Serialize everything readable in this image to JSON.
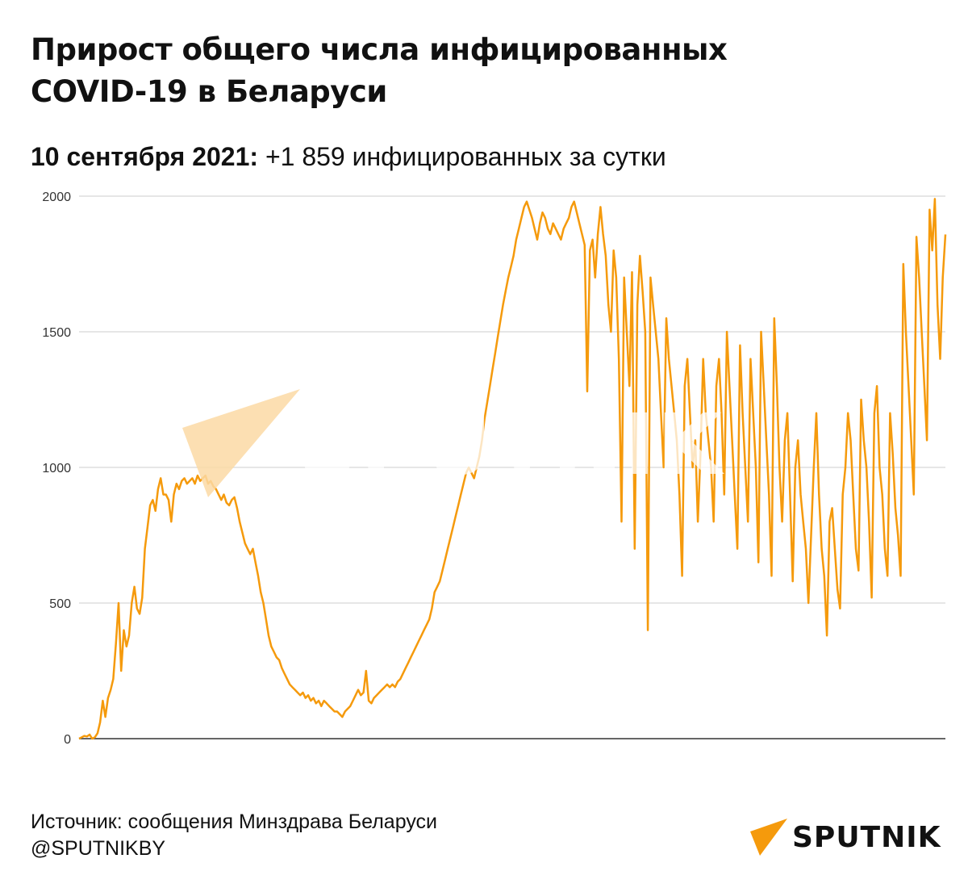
{
  "header": {
    "title_line1": "Прирост общего числа инфицированных",
    "title_line2": "COVID-19 в Беларуси",
    "date": "10 сентября 2021:",
    "stat": "+1 859 инфицированных за сутки"
  },
  "footer": {
    "source": "Источник: сообщения Минздрава Беларуси",
    "handle": "@SPUTNIKBY"
  },
  "brand": {
    "name": "SPUTNIK",
    "watermark": "SPUTNIK",
    "logo_icon": "sputnik-arrow-icon"
  },
  "colors": {
    "line": "#f59a0c",
    "grid": "#cccccc",
    "brand_accent": "#f59a0c"
  },
  "chart_data": {
    "type": "line",
    "title": "Прирост общего числа инфицированных COVID-19 в Беларуси",
    "xlabel": "",
    "ylabel": "",
    "ylim": [
      0,
      2000
    ],
    "yticks": [
      0,
      500,
      1000,
      1500,
      2000
    ],
    "grid": true,
    "series": [
      {
        "values": [
          0,
          5,
          10,
          8,
          15,
          0,
          5,
          20,
          60,
          140,
          80,
          150,
          180,
          220,
          350,
          500,
          250,
          400,
          340,
          380,
          500,
          560,
          480,
          460,
          520,
          700,
          780,
          860,
          880,
          840,
          920,
          960,
          900,
          900,
          880,
          800,
          900,
          940,
          920,
          950,
          960,
          940,
          950,
          960,
          940,
          970,
          950,
          960,
          970,
          940,
          950,
          930,
          920,
          900,
          880,
          900,
          870,
          860,
          880,
          890,
          850,
          800,
          760,
          720,
          700,
          680,
          700,
          650,
          600,
          540,
          500,
          440,
          380,
          340,
          320,
          300,
          290,
          260,
          240,
          220,
          200,
          190,
          180,
          170,
          160,
          170,
          150,
          160,
          140,
          150,
          130,
          140,
          120,
          140,
          130,
          120,
          110,
          100,
          100,
          90,
          80,
          100,
          110,
          120,
          140,
          160,
          180,
          160,
          170,
          250,
          140,
          130,
          150,
          160,
          170,
          180,
          190,
          200,
          190,
          200,
          190,
          210,
          220,
          240,
          260,
          280,
          300,
          320,
          340,
          360,
          380,
          400,
          420,
          440,
          480,
          540,
          560,
          580,
          620,
          660,
          700,
          740,
          780,
          820,
          860,
          900,
          940,
          980,
          1000,
          980,
          960,
          1000,
          1040,
          1100,
          1180,
          1240,
          1300,
          1360,
          1420,
          1480,
          1540,
          1600,
          1650,
          1700,
          1740,
          1780,
          1840,
          1880,
          1920,
          1960,
          1980,
          1950,
          1920,
          1880,
          1840,
          1900,
          1940,
          1920,
          1880,
          1860,
          1900,
          1880,
          1860,
          1840,
          1880,
          1900,
          1920,
          1960,
          1980,
          1940,
          1900,
          1860,
          1820,
          1280,
          1800,
          1840,
          1700,
          1860,
          1960,
          1860,
          1780,
          1600,
          1500,
          1800,
          1700,
          1400,
          800,
          1700,
          1500,
          1300,
          1720,
          700,
          1600,
          1780,
          1650,
          1500,
          400,
          1700,
          1600,
          1500,
          1400,
          1200,
          1000,
          1550,
          1400,
          1300,
          1200,
          1100,
          900,
          600,
          1300,
          1400,
          1200,
          1000,
          1100,
          800,
          1050,
          1400,
          1200,
          1100,
          1000,
          800,
          1300,
          1400,
          1200,
          900,
          1500,
          1300,
          1100,
          900,
          700,
          1450,
          1200,
          1000,
          800,
          1400,
          1200,
          1000,
          650,
          1500,
          1300,
          1100,
          900,
          600,
          1550,
          1300,
          1000,
          800,
          1100,
          1200,
          900,
          580,
          1000,
          1100,
          900,
          800,
          700,
          500,
          750,
          1000,
          1200,
          900,
          700,
          600,
          380,
          800,
          850,
          700,
          550,
          480,
          900,
          1000,
          1200,
          1100,
          900,
          700,
          620,
          1250,
          1100,
          1000,
          800,
          520,
          1200,
          1300,
          1000,
          900,
          700,
          600,
          1200,
          1050,
          850,
          750,
          600,
          1750,
          1500,
          1300,
          1100,
          900,
          1850,
          1700,
          1500,
          1300,
          1100,
          1950,
          1800,
          1990,
          1600,
          1400,
          1700,
          1859
        ]
      }
    ]
  }
}
